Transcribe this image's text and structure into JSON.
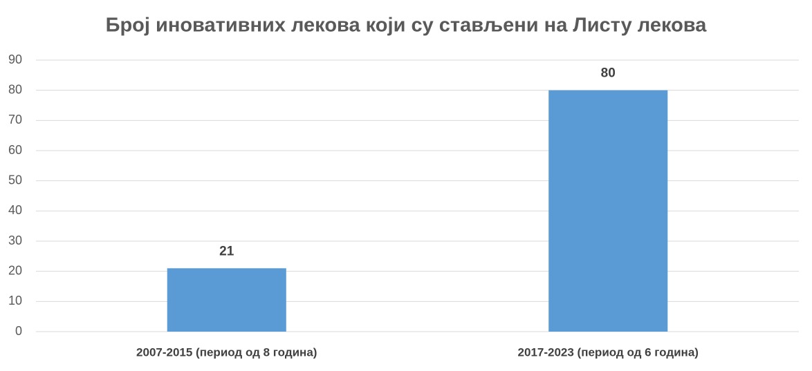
{
  "chart_data": {
    "type": "bar",
    "title": "Број иновативних лекова који су стављени на Листу лекова",
    "categories": [
      "2007-2015 (период од 8 година)",
      "2017-2023 (период од 6 година)"
    ],
    "values": [
      21,
      80
    ],
    "color": "#5b9bd5",
    "ylim": [
      0,
      90
    ],
    "yticks": [
      0,
      10,
      20,
      30,
      40,
      50,
      60,
      70,
      80,
      90
    ],
    "grid": true,
    "data_labels": true
  }
}
